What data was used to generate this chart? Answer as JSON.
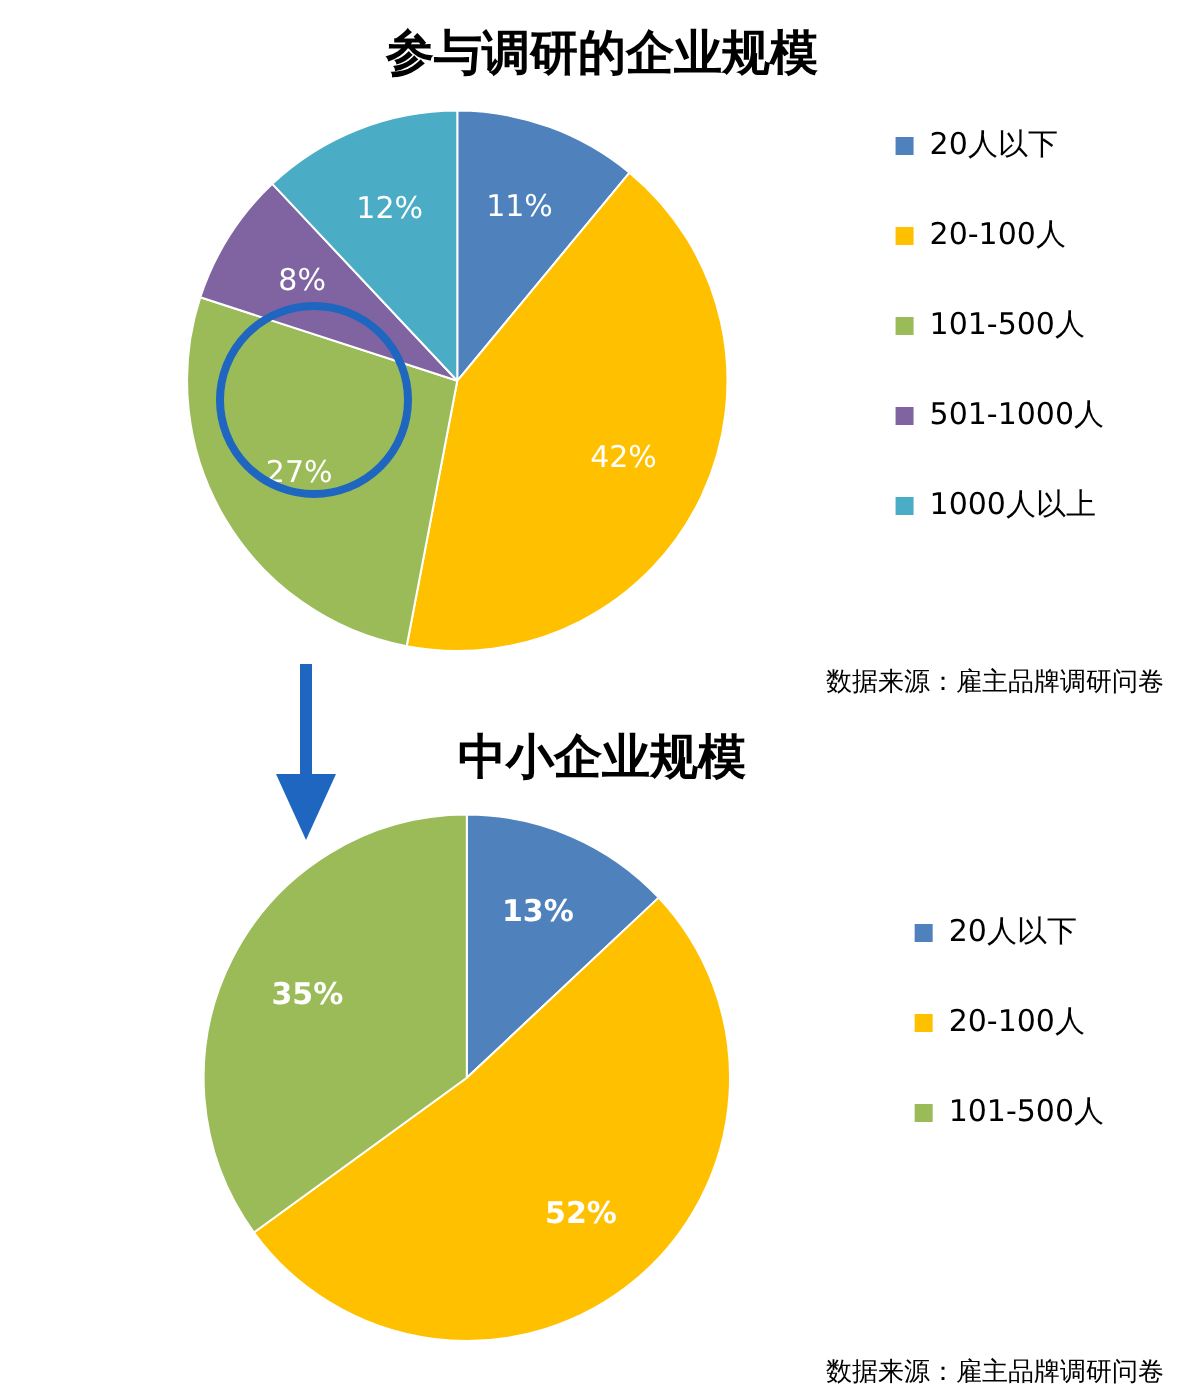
{
  "chart_data": [
    {
      "type": "pie",
      "title": "参与调研的企业规模",
      "categories": [
        "20人以下",
        "20-100人",
        "101-500人",
        "501-1000人",
        "1000人以上"
      ],
      "values": [
        11,
        42,
        27,
        8,
        12
      ],
      "colors": [
        "#4f81bd",
        "#ffc000",
        "#9bbb59",
        "#8064a2",
        "#4bacc6"
      ],
      "value_labels": [
        "11%",
        "42%",
        "27%",
        "8%",
        "12%"
      ],
      "legend": "right",
      "annotations": [
        "数据来源：雇主品牌调研问卷"
      ]
    },
    {
      "type": "pie",
      "title": "中小企业规模",
      "categories": [
        "20人以下",
        "20-100人",
        "101-500人"
      ],
      "values": [
        13,
        52,
        35
      ],
      "colors": [
        "#4f81bd",
        "#ffc000",
        "#9bbb59"
      ],
      "value_labels": [
        "13%",
        "52%",
        "35%"
      ],
      "legend": "right",
      "annotations": [
        "数据来源：雇主品牌调研问卷"
      ]
    }
  ]
}
